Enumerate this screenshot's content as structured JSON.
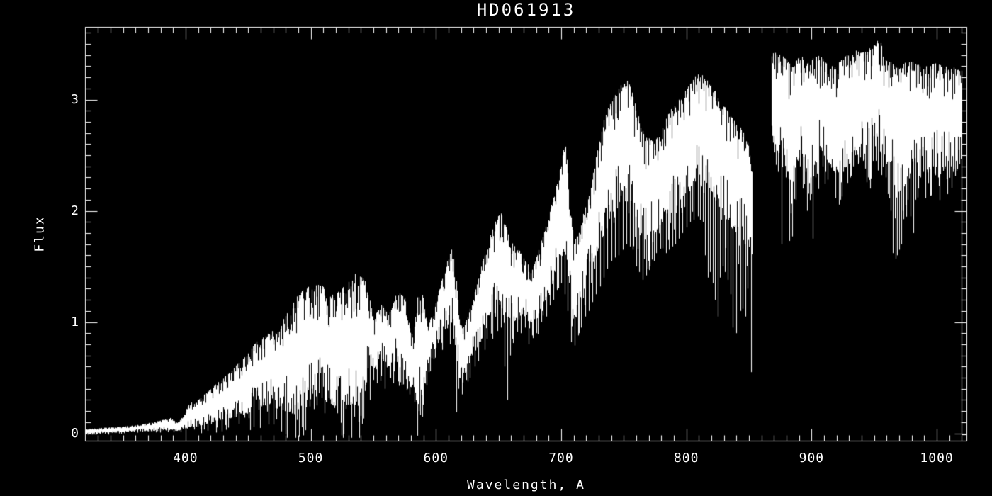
{
  "chart_data": {
    "type": "line",
    "title": "HD061913",
    "xlabel": "Wavelength, A",
    "ylabel": "Flux",
    "background": "#000000",
    "line_color": "#ffffff",
    "axis_color": "#ffffff",
    "grid": false,
    "legend": null,
    "xlim": [
      320,
      1024
    ],
    "ylim": [
      -0.07,
      3.65
    ],
    "x_major_ticks": [
      400,
      500,
      600,
      700,
      800,
      900,
      1000
    ],
    "y_major_ticks": [
      0,
      1,
      2,
      3
    ],
    "x_minor_step": 10,
    "y_minor_step": 0.1,
    "series_gap": [
      853,
      868
    ],
    "segments": [
      {
        "name": "spectrum-segment-1",
        "envelope": [
          [
            320,
            0.0,
            0.04
          ],
          [
            335,
            0.0,
            0.05
          ],
          [
            350,
            0.01,
            0.06
          ],
          [
            365,
            0.02,
            0.08
          ],
          [
            378,
            0.02,
            0.11
          ],
          [
            388,
            0.03,
            0.14
          ],
          [
            394,
            0.02,
            0.1
          ],
          [
            398,
            0.03,
            0.16
          ],
          [
            403,
            0.05,
            0.27
          ],
          [
            410,
            0.06,
            0.3
          ],
          [
            418,
            0.09,
            0.38
          ],
          [
            426,
            0.11,
            0.46
          ],
          [
            434,
            0.13,
            0.54
          ],
          [
            442,
            0.15,
            0.63
          ],
          [
            450,
            0.18,
            0.72
          ],
          [
            458,
            0.21,
            0.85
          ],
          [
            466,
            0.24,
            0.9
          ],
          [
            474,
            0.22,
            0.95
          ],
          [
            481,
            0.18,
            1.08
          ],
          [
            488,
            0.16,
            1.24
          ],
          [
            495,
            0.3,
            1.3
          ],
          [
            502,
            0.34,
            1.34
          ],
          [
            509,
            0.3,
            1.33
          ],
          [
            516,
            0.26,
            1.24
          ],
          [
            523,
            0.22,
            1.28
          ],
          [
            530,
            0.26,
            1.38
          ],
          [
            536,
            0.22,
            1.44
          ],
          [
            541,
            0.3,
            1.4
          ],
          [
            545,
            0.48,
            1.35
          ],
          [
            550,
            0.56,
            1.02
          ],
          [
            556,
            0.6,
            1.18
          ],
          [
            562,
            0.6,
            1.06
          ],
          [
            569,
            0.64,
            1.28
          ],
          [
            575,
            0.5,
            1.22
          ],
          [
            579,
            0.42,
            0.95
          ],
          [
            582,
            0.38,
            0.85
          ],
          [
            585,
            0.22,
            1.26
          ],
          [
            589,
            0.25,
            1.3
          ],
          [
            593,
            0.58,
            0.98
          ],
          [
            598,
            0.72,
            1.08
          ],
          [
            603,
            0.85,
            1.32
          ],
          [
            608,
            0.95,
            1.52
          ],
          [
            613,
            1.0,
            1.68
          ],
          [
            616,
            0.7,
            1.4
          ],
          [
            619,
            0.48,
            0.98
          ],
          [
            622,
            0.52,
            0.96
          ],
          [
            627,
            0.62,
            1.12
          ],
          [
            632,
            0.74,
            1.32
          ],
          [
            637,
            0.86,
            1.54
          ],
          [
            642,
            1.0,
            1.74
          ],
          [
            647,
            1.08,
            1.9
          ],
          [
            652,
            1.14,
            2.0
          ],
          [
            656,
            0.95,
            1.85
          ],
          [
            660,
            0.95,
            1.72
          ],
          [
            665,
            1.05,
            1.66
          ],
          [
            670,
            1.06,
            1.6
          ],
          [
            675,
            0.98,
            1.48
          ],
          [
            680,
            1.02,
            1.58
          ],
          [
            686,
            1.16,
            1.8
          ],
          [
            692,
            1.32,
            2.05
          ],
          [
            697,
            1.48,
            2.3
          ],
          [
            701,
            1.6,
            2.55
          ],
          [
            704,
            1.55,
            2.62
          ],
          [
            707,
            1.25,
            2.1
          ],
          [
            710,
            0.98,
            1.72
          ],
          [
            713,
            1.05,
            1.78
          ],
          [
            717,
            1.25,
            1.98
          ],
          [
            722,
            1.42,
            2.18
          ],
          [
            727,
            1.58,
            2.42
          ],
          [
            732,
            1.74,
            2.76
          ],
          [
            737,
            1.86,
            2.92
          ],
          [
            743,
            1.98,
            3.04
          ],
          [
            749,
            2.08,
            3.16
          ],
          [
            753,
            2.08,
            3.18
          ],
          [
            757,
            2.0,
            3.05
          ],
          [
            761,
            1.88,
            2.88
          ],
          [
            765,
            1.66,
            2.72
          ],
          [
            769,
            1.7,
            2.66
          ],
          [
            774,
            1.78,
            2.62
          ],
          [
            779,
            1.88,
            2.7
          ],
          [
            784,
            1.94,
            2.84
          ],
          [
            789,
            1.98,
            2.94
          ],
          [
            794,
            2.06,
            3.0
          ],
          [
            799,
            2.14,
            3.08
          ],
          [
            804,
            2.22,
            3.16
          ],
          [
            809,
            2.28,
            3.25
          ],
          [
            814,
            2.26,
            3.22
          ],
          [
            819,
            2.2,
            3.14
          ],
          [
            824,
            2.08,
            3.06
          ],
          [
            829,
            1.98,
            2.96
          ],
          [
            834,
            1.88,
            2.88
          ],
          [
            839,
            1.8,
            2.8
          ],
          [
            844,
            1.76,
            2.74
          ],
          [
            849,
            1.62,
            2.62
          ],
          [
            852.5,
            1.52,
            2.4
          ]
        ]
      },
      {
        "name": "spectrum-segment-2",
        "envelope": [
          [
            868,
            2.62,
            3.42
          ],
          [
            872,
            2.52,
            3.46
          ],
          [
            876,
            2.4,
            3.4
          ],
          [
            880,
            2.32,
            3.36
          ],
          [
            884,
            2.24,
            3.3
          ],
          [
            888,
            2.44,
            3.36
          ],
          [
            892,
            2.52,
            3.4
          ],
          [
            896,
            2.42,
            3.32
          ],
          [
            900,
            2.32,
            3.36
          ],
          [
            904,
            2.44,
            3.4
          ],
          [
            908,
            2.52,
            3.38
          ],
          [
            912,
            2.46,
            3.32
          ],
          [
            916,
            2.38,
            3.3
          ],
          [
            920,
            2.32,
            3.32
          ],
          [
            924,
            2.36,
            3.36
          ],
          [
            928,
            2.4,
            3.4
          ],
          [
            932,
            2.44,
            3.42
          ],
          [
            936,
            2.5,
            3.46
          ],
          [
            940,
            2.46,
            3.42
          ],
          [
            944,
            2.42,
            3.44
          ],
          [
            948,
            2.5,
            3.48
          ],
          [
            952,
            2.54,
            3.52
          ],
          [
            954,
            2.55,
            3.58
          ],
          [
            957,
            2.48,
            3.42
          ],
          [
            961,
            2.35,
            3.36
          ],
          [
            965,
            2.22,
            3.32
          ],
          [
            969,
            2.16,
            3.3
          ],
          [
            973,
            2.2,
            3.32
          ],
          [
            977,
            2.28,
            3.35
          ],
          [
            981,
            2.34,
            3.34
          ],
          [
            985,
            2.38,
            3.32
          ],
          [
            989,
            2.4,
            3.3
          ],
          [
            993,
            2.36,
            3.3
          ],
          [
            997,
            2.4,
            3.33
          ],
          [
            1001,
            2.38,
            3.32
          ],
          [
            1005,
            2.36,
            3.3
          ],
          [
            1009,
            2.4,
            3.3
          ],
          [
            1013,
            2.38,
            3.29
          ],
          [
            1016,
            2.36,
            3.28
          ],
          [
            1019.5,
            2.4,
            3.26
          ]
        ],
        "tail": {
          "x": 1019.5,
          "flat_to": 1023.5,
          "flux": -0.01
        }
      }
    ],
    "absorption_spikes": [
      [
        489,
        0.12
      ],
      [
        493,
        0.35
      ],
      [
        497,
        0.3
      ],
      [
        501,
        0.4
      ],
      [
        505,
        0.25
      ],
      [
        509,
        0.32
      ],
      [
        512,
        0.28
      ],
      [
        516,
        0.35
      ],
      [
        521,
        0.18
      ],
      [
        525,
        0.3
      ],
      [
        528,
        0.22
      ],
      [
        532,
        0.28
      ],
      [
        535,
        0.15
      ],
      [
        538,
        0.26
      ],
      [
        540,
        0.24
      ],
      [
        543,
        0.38
      ],
      [
        547,
        0.3
      ],
      [
        550,
        0.48
      ],
      [
        553,
        0.45
      ],
      [
        556,
        0.52
      ],
      [
        559,
        0.4
      ],
      [
        563,
        0.5
      ],
      [
        566,
        0.45
      ],
      [
        570,
        0.55
      ],
      [
        574,
        0.44
      ],
      [
        577,
        0.4
      ],
      [
        579,
        0.35
      ],
      [
        583,
        0.28
      ],
      [
        586,
        0.2
      ],
      [
        589,
        0.15
      ],
      [
        591,
        0.45
      ],
      [
        594,
        0.55
      ],
      [
        599,
        0.68
      ],
      [
        605,
        0.75
      ],
      [
        611,
        0.8
      ],
      [
        614,
        0.85
      ],
      [
        616,
        0.19
      ],
      [
        618,
        0.4
      ],
      [
        621,
        0.35
      ],
      [
        624,
        0.48
      ],
      [
        627,
        0.5
      ],
      [
        631,
        0.6
      ],
      [
        634,
        0.65
      ],
      [
        639,
        0.75
      ],
      [
        645,
        0.85
      ],
      [
        649,
        0.92
      ],
      [
        652,
        0.95
      ],
      [
        655,
        0.6
      ],
      [
        657,
        0.3
      ],
      [
        659,
        0.7
      ],
      [
        661,
        0.85
      ],
      [
        665,
        0.92
      ],
      [
        668,
        0.9
      ],
      [
        671,
        0.95
      ],
      [
        674,
        0.8
      ],
      [
        677,
        0.88
      ],
      [
        680,
        0.9
      ],
      [
        684,
        1.0
      ],
      [
        688,
        1.05
      ],
      [
        691,
        1.15
      ],
      [
        694,
        1.2
      ],
      [
        697,
        1.3
      ],
      [
        700,
        1.35
      ],
      [
        703,
        1.25
      ],
      [
        705,
        1.1
      ],
      [
        708,
        0.82
      ],
      [
        711,
        0.79
      ],
      [
        714,
        0.9
      ],
      [
        716,
        0.95
      ],
      [
        719,
        1.05
      ],
      [
        722,
        1.1
      ],
      [
        725,
        1.18
      ],
      [
        728,
        1.25
      ],
      [
        731,
        1.32
      ],
      [
        734,
        1.4
      ],
      [
        737,
        1.48
      ],
      [
        740,
        1.55
      ],
      [
        743,
        1.58
      ],
      [
        746,
        1.6
      ],
      [
        749,
        1.65
      ],
      [
        752,
        1.7
      ],
      [
        755,
        1.68
      ],
      [
        757,
        1.65
      ],
      [
        760,
        1.5
      ],
      [
        762,
        1.45
      ],
      [
        765,
        1.38
      ],
      [
        768,
        1.42
      ],
      [
        771,
        1.5
      ],
      [
        774,
        1.55
      ],
      [
        776,
        1.62
      ],
      [
        779,
        1.66
      ],
      [
        781,
        1.7
      ],
      [
        784,
        1.62
      ],
      [
        786,
        1.65
      ],
      [
        789,
        1.68
      ],
      [
        791,
        1.7
      ],
      [
        794,
        1.75
      ],
      [
        797,
        1.8
      ],
      [
        800,
        1.85
      ],
      [
        803,
        1.9
      ],
      [
        806,
        1.92
      ],
      [
        809,
        1.95
      ],
      [
        811,
        1.92
      ],
      [
        813,
        1.9
      ],
      [
        815,
        1.6
      ],
      [
        817,
        1.4
      ],
      [
        819,
        1.45
      ],
      [
        821,
        1.35
      ],
      [
        823,
        1.2
      ],
      [
        825,
        1.05
      ],
      [
        827,
        1.4
      ],
      [
        829,
        1.5
      ],
      [
        831,
        1.45
      ],
      [
        833,
        1.38
      ],
      [
        835,
        1.25
      ],
      [
        837,
        0.95
      ],
      [
        840,
        0.9
      ],
      [
        843,
        1.1
      ],
      [
        845,
        1.12
      ],
      [
        847,
        1.05
      ],
      [
        849,
        1.3
      ],
      [
        851.5,
        0.55
      ],
      [
        869,
        2.75
      ],
      [
        871,
        2.6
      ],
      [
        873,
        2.35
      ],
      [
        876,
        1.7
      ],
      [
        878,
        2.5
      ],
      [
        879.5,
        2.3
      ],
      [
        882,
        1.73
      ],
      [
        884.5,
        1.77
      ],
      [
        886,
        2.2
      ],
      [
        887.5,
        2.1
      ],
      [
        889,
        2.45
      ],
      [
        891,
        2.4
      ],
      [
        893,
        2.2
      ],
      [
        895,
        2.35
      ],
      [
        896.5,
        2.0
      ],
      [
        898,
        2.25
      ],
      [
        899.5,
        2.15
      ],
      [
        901,
        1.75
      ],
      [
        903,
        2.3
      ],
      [
        905,
        2.45
      ],
      [
        907,
        2.55
      ],
      [
        909,
        2.4
      ],
      [
        911,
        2.35
      ],
      [
        913,
        2.28
      ],
      [
        915,
        2.45
      ],
      [
        917,
        2.4
      ],
      [
        919,
        2.3
      ],
      [
        921,
        2.42
      ],
      [
        923,
        2.1
      ],
      [
        925,
        2.35
      ],
      [
        927,
        2.45
      ],
      [
        929,
        2.5
      ],
      [
        931,
        2.3
      ],
      [
        933,
        2.4
      ],
      [
        935,
        2.5
      ],
      [
        937,
        2.42
      ],
      [
        939,
        2.48
      ],
      [
        941,
        2.45
      ],
      [
        943,
        2.38
      ],
      [
        945,
        2.3
      ],
      [
        947,
        2.2
      ],
      [
        949,
        2.48
      ],
      [
        951,
        2.45
      ],
      [
        953,
        2.4
      ],
      [
        955,
        2.52
      ],
      [
        957,
        2.45
      ],
      [
        959,
        2.3
      ],
      [
        961,
        2.15
      ],
      [
        963,
        2.0
      ],
      [
        965,
        1.62
      ],
      [
        967,
        1.57
      ],
      [
        968.5,
        1.6
      ],
      [
        970,
        1.65
      ],
      [
        971.5,
        1.7
      ],
      [
        973,
        2.0
      ],
      [
        975,
        2.05
      ],
      [
        977,
        2.1
      ],
      [
        979,
        1.95
      ],
      [
        981,
        1.8
      ],
      [
        983,
        2.1
      ],
      [
        985,
        2.2
      ],
      [
        987,
        2.3
      ],
      [
        989,
        2.35
      ],
      [
        991,
        2.28
      ],
      [
        993,
        2.25
      ],
      [
        995,
        2.35
      ],
      [
        997,
        2.4
      ],
      [
        999,
        2.32
      ],
      [
        1001,
        2.3
      ],
      [
        1003,
        2.33
      ],
      [
        1005,
        2.36
      ],
      [
        1007,
        2.4
      ],
      [
        1009,
        2.45
      ],
      [
        1011,
        2.4
      ],
      [
        1013,
        2.35
      ],
      [
        1015,
        2.45
      ],
      [
        1016.5,
        2.5
      ],
      [
        1018,
        2.42
      ]
    ]
  }
}
